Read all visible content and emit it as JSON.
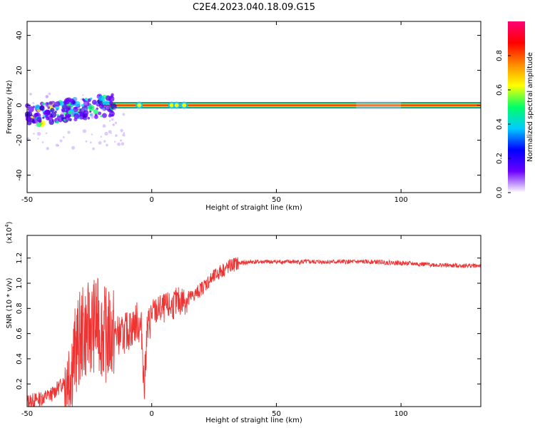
{
  "title": "C2E4.2023.040.18.09.G15",
  "chart_data": [
    {
      "type": "heatmap",
      "xlabel": "Height of straight line (km)",
      "ylabel": "Frequency (Hz)",
      "xlim": [
        -50,
        132
      ],
      "ylim": [
        -50,
        48
      ],
      "xticks": [
        -50,
        0,
        50,
        100
      ],
      "yticks": [
        -40,
        -20,
        0,
        20,
        40
      ],
      "colorbar": {
        "label": "Normalized spectral amplitude",
        "range": [
          0,
          1
        ],
        "ticks": [
          "0.0",
          "0.2",
          "0.4",
          "0.6",
          "0.8"
        ],
        "colors": [
          "#ffffff",
          "#6a00ff",
          "#0000ff",
          "#00ccff",
          "#00ff66",
          "#ffff00",
          "#ff8800",
          "#ff0000",
          "#ff0077"
        ]
      },
      "line": {
        "description": "strong carrier band near 0 Hz from -20 km onward",
        "x_start": -20,
        "x_end": 132,
        "frequency": 0
      },
      "scatter_region": {
        "x_range": [
          -50,
          -15
        ],
        "frequency_range": [
          -15,
          5
        ]
      }
    },
    {
      "type": "line",
      "xlabel": "Height of straight line (km)",
      "ylabel": "SNR (10 * v/v)",
      "y_multiplier": "(x10^4)",
      "xlim": [
        -50,
        132
      ],
      "ylim": [
        0.02,
        1.38
      ],
      "xticks": [
        -50,
        0,
        50,
        100
      ],
      "yticks": [
        "0.2",
        "0.4",
        "0.6",
        "0.8",
        "1.0",
        "1.2"
      ],
      "color": "#ee3333",
      "series": [
        {
          "x": [
            -50,
            -45,
            -40,
            -36,
            -33,
            -30,
            -28,
            -26,
            -24,
            -22,
            -20,
            -18,
            -15,
            -12,
            -10,
            -8,
            -6,
            -4,
            -3,
            -2,
            0,
            2,
            5,
            8,
            10,
            12,
            15,
            18,
            20,
            22,
            25,
            28,
            30,
            33,
            36,
            40,
            45,
            50,
            60,
            70,
            80,
            90,
            100,
            110,
            120,
            132
          ],
          "y": [
            0.06,
            0.08,
            0.12,
            0.2,
            0.3,
            0.5,
            0.6,
            0.62,
            0.66,
            0.68,
            0.62,
            0.58,
            0.6,
            0.58,
            0.62,
            0.64,
            0.7,
            0.62,
            0.15,
            0.6,
            0.76,
            0.78,
            0.8,
            0.82,
            0.85,
            0.86,
            0.88,
            0.92,
            0.96,
            1.0,
            1.05,
            1.1,
            1.12,
            1.15,
            1.16,
            1.17,
            1.17,
            1.17,
            1.17,
            1.17,
            1.17,
            1.17,
            1.16,
            1.15,
            1.14,
            1.14
          ]
        }
      ]
    }
  ]
}
